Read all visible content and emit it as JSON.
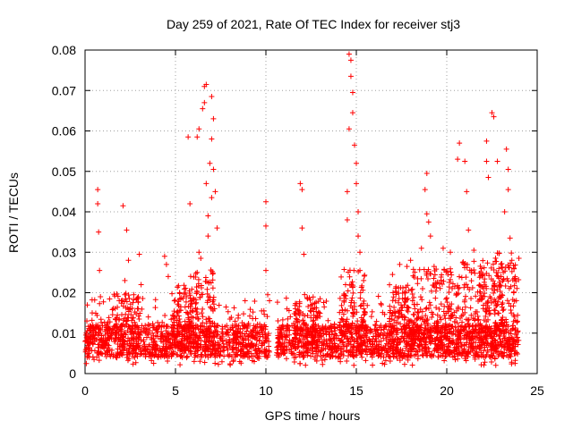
{
  "chart_data": {
    "type": "scatter",
    "title": "Day 259 of 2021, Rate Of TEC Index for receiver stj3",
    "xlabel": "GPS time / hours",
    "ylabel": "ROTI / TECUs",
    "xlim": [
      0,
      25
    ],
    "ylim": [
      0,
      0.08
    ],
    "x_ticks": [
      0,
      5,
      10,
      15,
      20,
      25
    ],
    "x_tick_labels": [
      "0",
      "5",
      "10",
      "15",
      "20",
      "25"
    ],
    "y_ticks": [
      0,
      0.01,
      0.02,
      0.03,
      0.04,
      0.05,
      0.06,
      0.07,
      0.08
    ],
    "y_tick_labels": [
      "0",
      "0.01",
      "0.02",
      "0.03",
      "0.04",
      "0.05",
      "0.06",
      "0.07",
      "0.08"
    ],
    "grid": true,
    "marker": "+",
    "color": "#ff0000",
    "series": [
      {
        "name": "ROTI",
        "points": [
          [
            0.1,
            0.008
          ],
          [
            0.1,
            0.013
          ],
          [
            0.2,
            0.005
          ],
          [
            0.3,
            0.009
          ],
          [
            0.6,
            0.012
          ],
          [
            0.7,
            0.0455
          ],
          [
            0.7,
            0.042
          ],
          [
            0.75,
            0.035
          ],
          [
            0.8,
            0.0255
          ],
          [
            0.85,
            0.019
          ],
          [
            2.1,
            0.0415
          ],
          [
            2.2,
            0.023
          ],
          [
            2.3,
            0.0355
          ],
          [
            2.4,
            0.028
          ],
          [
            2.5,
            0.016
          ],
          [
            3.0,
            0.0295
          ],
          [
            3.1,
            0.022
          ],
          [
            3.5,
            0.014
          ],
          [
            4.4,
            0.029
          ],
          [
            4.5,
            0.027
          ],
          [
            4.6,
            0.024
          ],
          [
            5.7,
            0.0585
          ],
          [
            5.8,
            0.042
          ],
          [
            6.2,
            0.025
          ],
          [
            6.2,
            0.0585
          ],
          [
            6.3,
            0.0605
          ],
          [
            6.3,
            0.03
          ],
          [
            6.4,
            0.0285
          ],
          [
            6.5,
            0.0655
          ],
          [
            6.6,
            0.071
          ],
          [
            6.6,
            0.067
          ],
          [
            6.7,
            0.0715
          ],
          [
            6.7,
            0.047
          ],
          [
            6.8,
            0.039
          ],
          [
            6.8,
            0.034
          ],
          [
            6.9,
            0.052
          ],
          [
            7.0,
            0.0685
          ],
          [
            7.0,
            0.058
          ],
          [
            7.1,
            0.063
          ],
          [
            7.1,
            0.0505
          ],
          [
            7.2,
            0.045
          ],
          [
            7.0,
            0.0435
          ],
          [
            7.3,
            0.036
          ],
          [
            10.0,
            0.0425
          ],
          [
            10.0,
            0.0365
          ],
          [
            10.0,
            0.0255
          ],
          [
            10.1,
            0.0195
          ],
          [
            10.2,
            0.018
          ],
          [
            11.9,
            0.047
          ],
          [
            12.0,
            0.0455
          ],
          [
            12.0,
            0.036
          ],
          [
            12.1,
            0.0295
          ],
          [
            12.3,
            0.0185
          ],
          [
            13.0,
            0.0185
          ],
          [
            14.6,
            0.079
          ],
          [
            14.7,
            0.0775
          ],
          [
            14.7,
            0.0735
          ],
          [
            14.8,
            0.0695
          ],
          [
            14.8,
            0.0645
          ],
          [
            14.9,
            0.0565
          ],
          [
            14.6,
            0.0605
          ],
          [
            15.0,
            0.052
          ],
          [
            15.0,
            0.047
          ],
          [
            14.5,
            0.045
          ],
          [
            15.1,
            0.04
          ],
          [
            15.1,
            0.034
          ],
          [
            15.2,
            0.03
          ],
          [
            14.5,
            0.038
          ],
          [
            15.2,
            0.0255
          ],
          [
            17.0,
            0.0245
          ],
          [
            17.4,
            0.027
          ],
          [
            17.8,
            0.0265
          ],
          [
            18.0,
            0.028
          ],
          [
            18.6,
            0.031
          ],
          [
            18.9,
            0.0495
          ],
          [
            18.8,
            0.0455
          ],
          [
            18.9,
            0.0395
          ],
          [
            19.0,
            0.0375
          ],
          [
            19.1,
            0.034
          ],
          [
            19.3,
            0.0265
          ],
          [
            19.8,
            0.031
          ],
          [
            20.2,
            0.03
          ],
          [
            20.7,
            0.057
          ],
          [
            20.6,
            0.053
          ],
          [
            21.0,
            0.0525
          ],
          [
            21.1,
            0.045
          ],
          [
            21.2,
            0.0355
          ],
          [
            21.5,
            0.0305
          ],
          [
            22.2,
            0.0575
          ],
          [
            22.2,
            0.0525
          ],
          [
            22.3,
            0.0485
          ],
          [
            22.5,
            0.0645
          ],
          [
            22.6,
            0.0635
          ],
          [
            22.8,
            0.0525
          ],
          [
            23.0,
            0.024
          ],
          [
            23.2,
            0.04
          ],
          [
            23.3,
            0.0555
          ],
          [
            23.4,
            0.0505
          ],
          [
            23.4,
            0.0455
          ],
          [
            23.5,
            0.0335
          ],
          [
            23.6,
            0.028
          ],
          [
            23.7,
            0.02
          ]
        ]
      }
    ],
    "background_noise": {
      "description_of_level": "dense band of points",
      "segments": [
        [
          0.0,
          10.2
        ],
        [
          10.6,
          24.0
        ]
      ],
      "typical_low": 0.004,
      "typical_high": 0.012
    }
  }
}
